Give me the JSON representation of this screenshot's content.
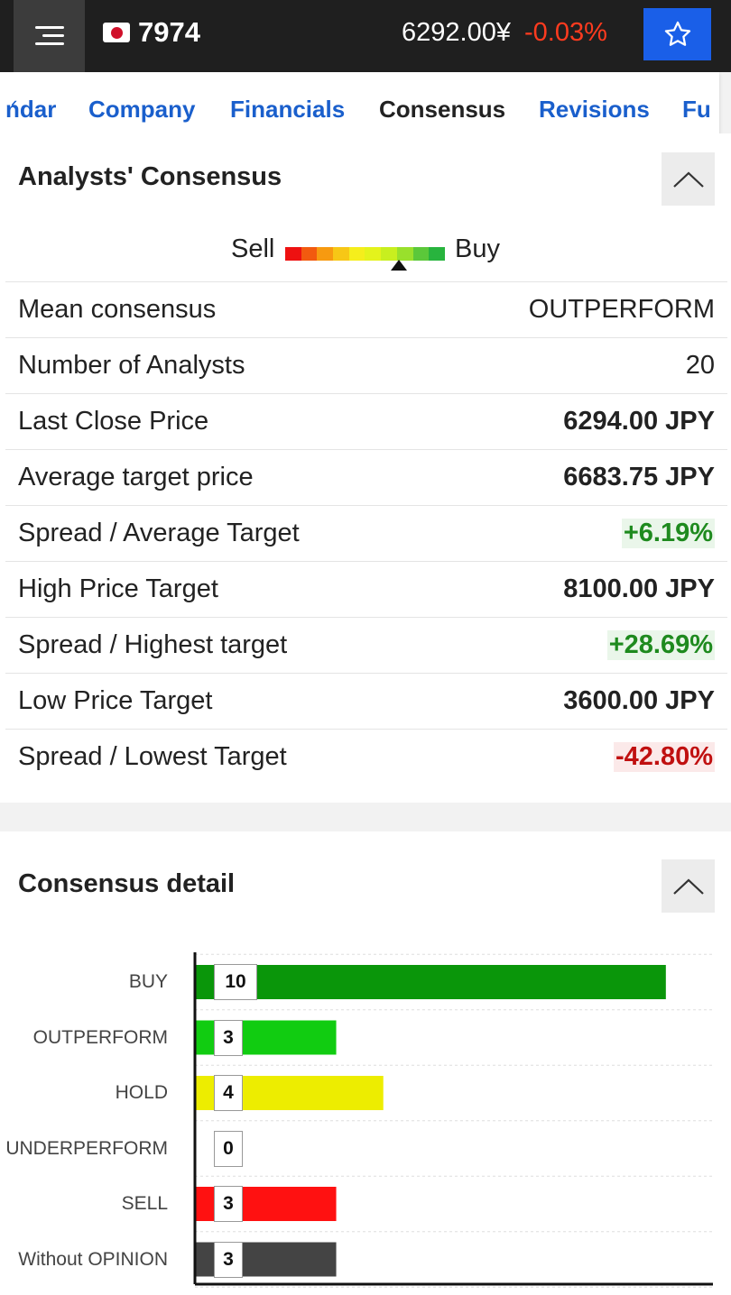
{
  "header": {
    "ticker": "7974",
    "price": "6292.00¥",
    "change": "-0.03%"
  },
  "tabs": [
    "ndar",
    "Company",
    "Financials",
    "Consensus",
    "Revisions",
    "Fu"
  ],
  "consensus": {
    "title": "Analysts' Consensus",
    "meter": {
      "sell_label": "Sell",
      "buy_label": "Buy",
      "colors": [
        "#ee1111",
        "#f25a0f",
        "#f79a10",
        "#f7c716",
        "#f5ee1c",
        "#e4f31c",
        "#c8ef1f",
        "#99e02c",
        "#5bc83a",
        "#28b43e"
      ],
      "pointer_fraction": 0.71
    },
    "rows": [
      {
        "label": "Mean consensus",
        "value": "OUTPERFORM",
        "style": "plain"
      },
      {
        "label": "Number of Analysts",
        "value": "20",
        "style": "plain"
      },
      {
        "label": "Last Close Price",
        "value": "6294.00 JPY",
        "style": "bold"
      },
      {
        "label": "Average target price",
        "value": "6683.75 JPY",
        "style": "bold"
      },
      {
        "label": "Spread / Average Target",
        "value": "+6.19%",
        "style": "pos"
      },
      {
        "label": "High Price Target",
        "value": "8100.00 JPY",
        "style": "bold"
      },
      {
        "label": "Spread / Highest target",
        "value": "+28.69%",
        "style": "pos"
      },
      {
        "label": "Low Price Target",
        "value": "3600.00 JPY",
        "style": "bold"
      },
      {
        "label": "Spread / Lowest Target",
        "value": "-42.80%",
        "style": "neg"
      }
    ]
  },
  "detail": {
    "title": "Consensus detail"
  },
  "chart_data": {
    "type": "bar",
    "orientation": "horizontal",
    "categories": [
      "BUY",
      "OUTPERFORM",
      "HOLD",
      "UNDERPERFORM",
      "SELL",
      "Without OPINION"
    ],
    "values": [
      10,
      3,
      4,
      0,
      3,
      3
    ],
    "colors": [
      "#0a960a",
      "#11cc11",
      "#eded00",
      "#ffffff",
      "#ff1111",
      "#444444"
    ],
    "xlim": [
      0,
      11
    ],
    "grid": true
  }
}
